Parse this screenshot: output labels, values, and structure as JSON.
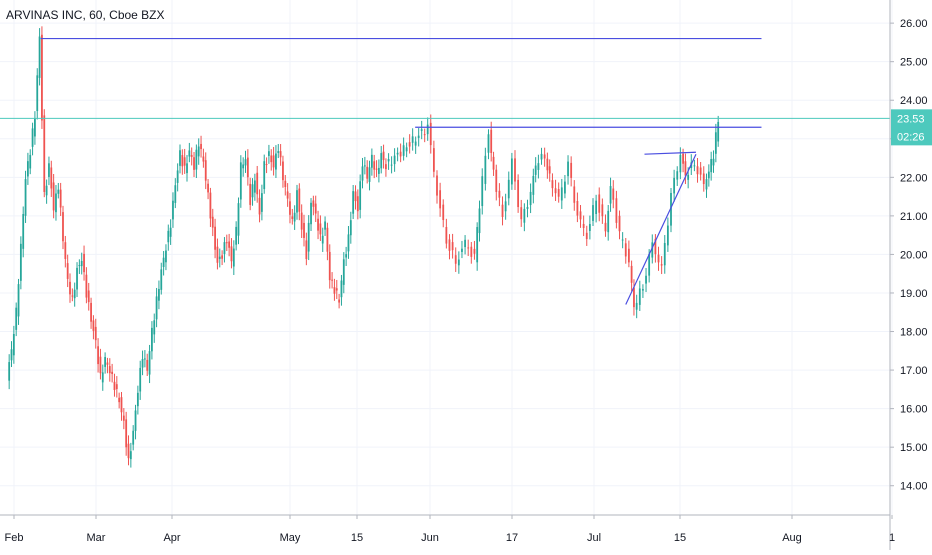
{
  "header": {
    "title": "ARVINAS INC, 60, Cboe BZX"
  },
  "colors": {
    "up": "#26a69a",
    "down": "#ef5350",
    "drawing": "#4a4ee0",
    "price_line": "#4dc9bd",
    "axis_text": "#131722",
    "grid": "#f0f3fa",
    "axis_border": "#b2b5be"
  },
  "price_axis": {
    "min": 13.5,
    "max": 26.6,
    "labels": [
      "26.00",
      "25.00",
      "24.00",
      "23.00",
      "22.00",
      "21.00",
      "20.00",
      "19.00",
      "18.00",
      "17.00",
      "16.00",
      "15.00",
      "14.00"
    ]
  },
  "last_price": {
    "value": 23.53,
    "label": "23.53",
    "countdown": "02:26"
  },
  "time_axis": {
    "labels": [
      "Feb",
      "Mar",
      "Apr",
      "May",
      "15",
      "Jun",
      "17",
      "Jul",
      "15",
      "Aug",
      "1"
    ]
  },
  "chart_data": {
    "type": "candlestick",
    "title": "ARVINAS INC, 60, Cboe BZX",
    "x_range": [
      "Feb",
      "Aug"
    ],
    "ylim": [
      13.5,
      26.6
    ],
    "grid": true,
    "trend_lines": [
      {
        "name": "resistance-high",
        "points": [
          [
            "Feb 8",
            25.6
          ],
          [
            "Jul 12",
            25.6
          ]
        ]
      },
      {
        "name": "resistance-mid",
        "points": [
          [
            "Apr 29",
            23.3
          ],
          [
            "Jul 12",
            23.3
          ]
        ]
      },
      {
        "name": "triangle-top",
        "points": [
          [
            "Jun 17",
            22.6
          ],
          [
            "Jun 28",
            22.65
          ]
        ]
      },
      {
        "name": "triangle-support",
        "points": [
          [
            "Jun 13",
            18.7
          ],
          [
            "Jun 28",
            22.6
          ]
        ]
      }
    ],
    "price_path": [
      [
        "Feb 1",
        16.8
      ],
      [
        "Feb 2",
        17.5
      ],
      [
        "Feb 3",
        18.5
      ],
      [
        "Feb 4",
        20.2
      ],
      [
        "Feb 5",
        22.0
      ],
      [
        "Feb 6",
        22.7
      ],
      [
        "Feb 7",
        23.6
      ],
      [
        "Feb 8",
        25.6
      ],
      [
        "Feb 9",
        21.5
      ],
      [
        "Feb 10",
        22.3
      ],
      [
        "Feb 11",
        21.2
      ],
      [
        "Feb 12",
        21.8
      ],
      [
        "Feb 13",
        20.4
      ],
      [
        "Feb 14",
        19.3
      ],
      [
        "Feb 15",
        18.8
      ],
      [
        "Feb 16",
        19.6
      ],
      [
        "Feb 17",
        19.9
      ],
      [
        "Feb 18",
        19.0
      ],
      [
        "Feb 19",
        18.3
      ],
      [
        "Feb 20",
        17.7
      ],
      [
        "Feb 21",
        16.8
      ],
      [
        "Feb 22",
        17.3
      ],
      [
        "Feb 23",
        17.0
      ],
      [
        "Feb 24",
        16.6
      ],
      [
        "Feb 25",
        16.2
      ],
      [
        "Feb 26",
        15.6
      ],
      [
        "Feb 27",
        14.6
      ],
      [
        "Feb 28",
        15.4
      ],
      [
        "Mar 1",
        16.5
      ],
      [
        "Mar 2",
        17.4
      ],
      [
        "Mar 3",
        17.0
      ],
      [
        "Mar 4",
        18.0
      ],
      [
        "Mar 5",
        18.8
      ],
      [
        "Mar 6",
        19.6
      ],
      [
        "Mar 7",
        20.2
      ],
      [
        "Mar 8",
        20.8
      ],
      [
        "Mar 9",
        21.8
      ],
      [
        "Mar 10",
        22.6
      ],
      [
        "Mar 11",
        22.2
      ],
      [
        "Mar 12",
        22.7
      ],
      [
        "Mar 13",
        22.3
      ],
      [
        "Mar 14",
        22.9
      ],
      [
        "Mar 15",
        22.4
      ],
      [
        "Mar 16",
        21.5
      ],
      [
        "Mar 17",
        20.6
      ],
      [
        "Mar 18",
        19.8
      ],
      [
        "Mar 19",
        20.0
      ],
      [
        "Mar 20",
        20.4
      ],
      [
        "Mar 21",
        19.8
      ],
      [
        "Mar 22",
        20.6
      ],
      [
        "Mar 23",
        22.3
      ],
      [
        "Mar 24",
        22.5
      ],
      [
        "Mar 25",
        21.4
      ],
      [
        "Mar 26",
        22.0
      ],
      [
        "Mar 27",
        21.0
      ],
      [
        "Mar 28",
        22.3
      ],
      [
        "Mar 29",
        22.6
      ],
      [
        "Mar 30",
        22.3
      ],
      [
        "Mar 31",
        22.8
      ],
      [
        "Apr 1",
        22.0
      ],
      [
        "Apr 2",
        21.4
      ],
      [
        "Apr 3",
        20.8
      ],
      [
        "Apr 4",
        21.6
      ],
      [
        "Apr 5",
        20.7
      ],
      [
        "Apr 6",
        20.0
      ],
      [
        "Apr 7",
        21.4
      ],
      [
        "Apr 8",
        21.0
      ],
      [
        "Apr 9",
        20.4
      ],
      [
        "Apr 10",
        20.8
      ],
      [
        "Apr 11",
        19.4
      ],
      [
        "Apr 12",
        19.1
      ],
      [
        "Apr 13",
        18.8
      ],
      [
        "Apr 14",
        19.8
      ],
      [
        "Apr 15",
        20.4
      ],
      [
        "Apr 16",
        21.6
      ],
      [
        "Apr 17",
        21.2
      ],
      [
        "Apr 18",
        22.4
      ],
      [
        "Apr 19",
        22.0
      ],
      [
        "Apr 20",
        22.5
      ],
      [
        "Apr 21",
        22.1
      ],
      [
        "Apr 22",
        22.6
      ],
      [
        "Apr 23",
        22.3
      ]
    ]
  }
}
